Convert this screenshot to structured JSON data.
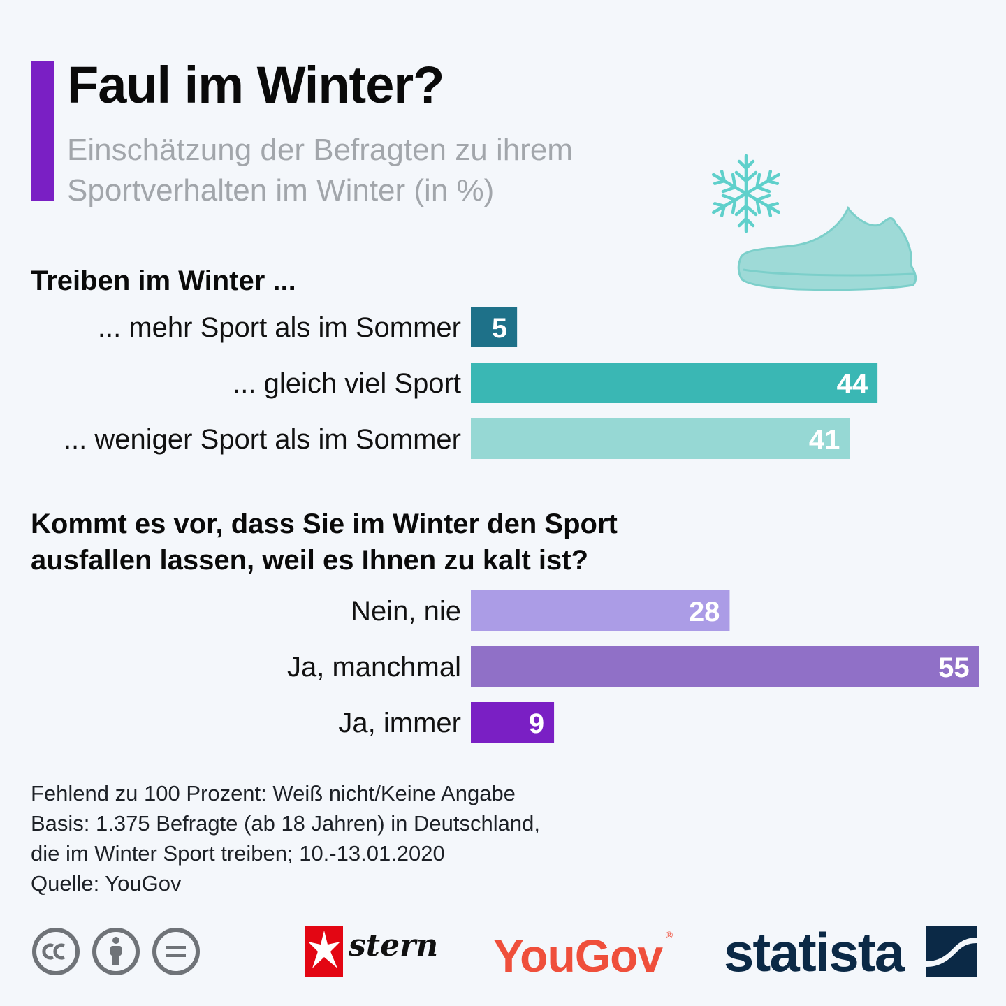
{
  "header": {
    "title": "Faul im Winter?",
    "subtitle": "Einschätzung der Befragten zu ihrem Sportverhalten im Winter (in %)"
  },
  "chart_data": [
    {
      "type": "bar",
      "orientation": "horizontal",
      "title": "Treiben im Winter ...",
      "categories": [
        "... mehr Sport als im Sommer",
        "... gleich viel Sport",
        "... weniger Sport als im Sommer"
      ],
      "values": [
        5,
        44,
        41
      ],
      "colors": [
        "#1e7189",
        "#3ab7b4",
        "#96d8d4"
      ],
      "unit": "%"
    },
    {
      "type": "bar",
      "orientation": "horizontal",
      "title": "Kommt es vor, dass Sie im Winter den Sport ausfallen lassen, weil es Ihnen zu kalt ist?",
      "categories": [
        "Nein, nie",
        "Ja, manchmal",
        "Ja, immer"
      ],
      "values": [
        28,
        55,
        9
      ],
      "colors": [
        "#ab9ce6",
        "#9070c7",
        "#7a1fc4"
      ],
      "unit": "%"
    }
  ],
  "footer": {
    "notes": [
      "Fehlend zu 100 Prozent: Weiß nicht/Keine Angabe",
      "Basis: 1.375 Befragte (ab 18 Jahren) in Deutschland,",
      "die im Winter Sport treiben; 10.-13.01.2020",
      "Quelle: YouGov"
    ]
  },
  "logos": {
    "stern": "stern",
    "yougov": "YouGov",
    "yougov_mark": "®",
    "statista": "statista"
  },
  "icons": [
    "snowflake-icon",
    "sneaker-icon",
    "cc-icon",
    "by-icon",
    "nd-icon"
  ]
}
